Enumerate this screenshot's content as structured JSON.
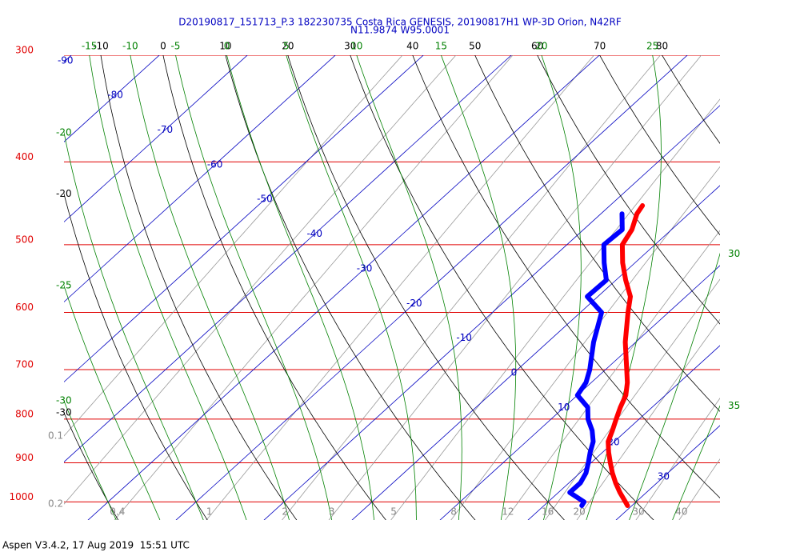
{
  "chart_data": {
    "type": "skew-t",
    "title": "D20190817_151713_P.3 182230735 Costa Rica GENESIS, 20190817H1 WP-3D Orion, N42RF",
    "subtitle": "N11.9874 W95.0001",
    "footer": "Aspen V3.4.2, 17 Aug 2019  15:51 UTC",
    "log_y": true,
    "ylim": [
      1050,
      300
    ],
    "yticks": [
      300,
      400,
      500,
      600,
      700,
      800,
      900,
      1000
    ],
    "isotherms": [
      -90,
      -80,
      -70,
      -60,
      -50,
      -40,
      -30,
      -20,
      -10,
      0,
      10,
      20,
      30
    ],
    "dry_adiabats": [
      -30,
      -20,
      -10,
      0,
      10,
      20,
      30,
      40,
      50,
      60,
      70,
      80
    ],
    "moist_adiabats": [
      -30,
      -25,
      -20,
      -15,
      -10,
      -5,
      0,
      5,
      10,
      15,
      20,
      25,
      30,
      35
    ],
    "mixing_ratios": [
      0.1,
      0.2,
      0.4,
      1,
      2,
      3,
      5,
      8,
      12,
      16,
      20,
      30,
      40
    ],
    "pressure_levels": [
      1010,
      1000,
      975,
      950,
      925,
      900,
      875,
      850,
      825,
      800,
      775,
      750,
      725,
      700,
      650,
      600,
      575,
      550,
      525,
      500,
      480,
      460,
      450
    ],
    "series": [
      {
        "name": "Temperature",
        "color": "#ff0000",
        "values": [
          29.5,
          28.8,
          27.0,
          25.3,
          23.7,
          22.2,
          20.7,
          19.3,
          18.4,
          17.4,
          16.4,
          15.5,
          14.1,
          12.4,
          8.8,
          5.4,
          3.7,
          1.1,
          -1.4,
          -3.7,
          -4.5,
          -5.9,
          -6.3
        ]
      },
      {
        "name": "Dewpoint",
        "color": "#0000ff",
        "values": [
          24.3,
          24.1,
          21.3,
          21.3,
          20.7,
          19.7,
          18.6,
          17.6,
          16.1,
          14.2,
          12.7,
          10.0,
          9.4,
          8.2,
          5.2,
          2.4,
          -1.2,
          -1.1,
          -3.5,
          -5.8,
          -5.6,
          -7.6,
          null
        ]
      }
    ]
  }
}
